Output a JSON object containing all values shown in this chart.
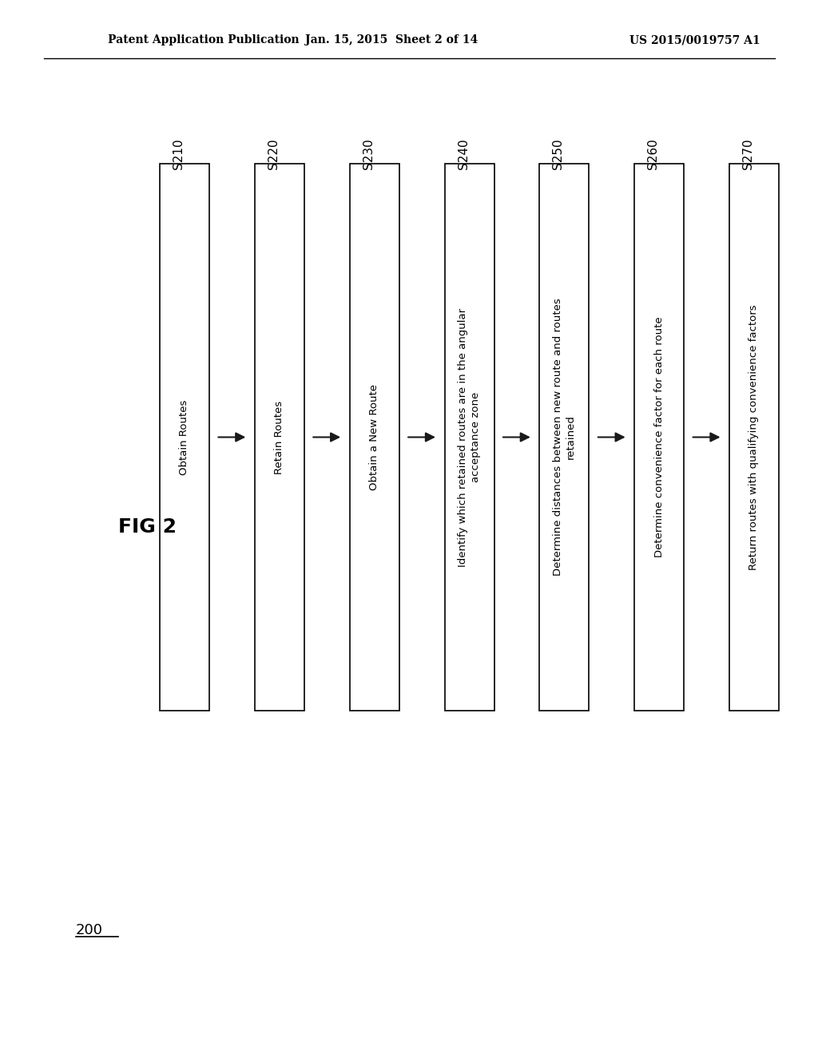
{
  "header_left": "Patent Application Publication",
  "header_mid": "Jan. 15, 2015  Sheet 2 of 14",
  "header_right": "US 2015/0019757 A1",
  "fig_label": "FIG 2",
  "diagram_label": "200",
  "steps": [
    {
      "id": "S210",
      "text": "Obtain Routes"
    },
    {
      "id": "S220",
      "text": "Retain Routes"
    },
    {
      "id": "S230",
      "text": "Obtain a New Route"
    },
    {
      "id": "S240",
      "text": "Identify which retained routes are in the angular\nacceptance zone"
    },
    {
      "id": "S250",
      "text": "Determine distances between new route and routes\nretained"
    },
    {
      "id": "S260",
      "text": "Determine convenience factor for each route"
    },
    {
      "id": "S270",
      "text": "Return routes with qualifying convenience factors"
    }
  ],
  "bg_color": "#ffffff",
  "box_color": "#000000",
  "text_color": "#000000",
  "arrow_color": "#1a1a1a",
  "step_font_size": 9.5,
  "id_font_size": 11,
  "header_font_size": 10,
  "fig_font_size": 18,
  "label_font_size": 13
}
